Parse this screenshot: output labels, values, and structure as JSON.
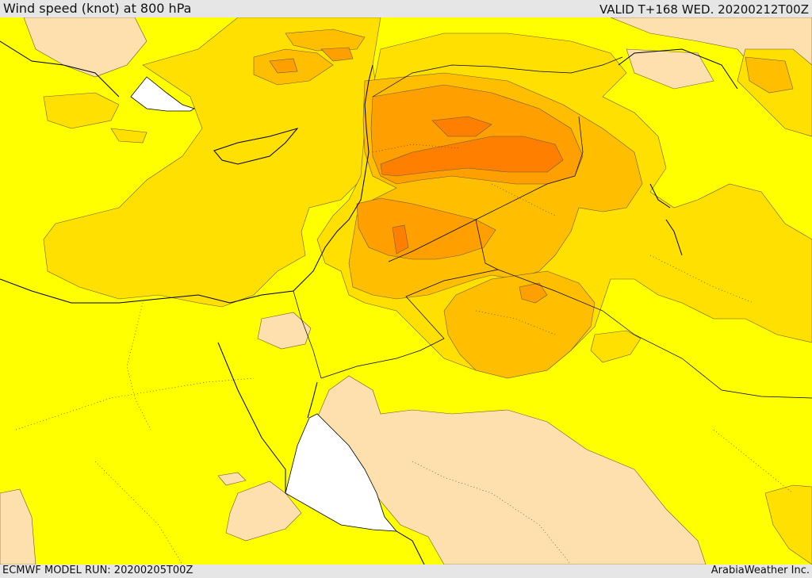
{
  "header": {
    "title": "Wind speed (knot) at 800 hPa",
    "valid": "VALID T+168 WED. 20200212T00Z"
  },
  "footer": {
    "model_run": "ECMWF MODEL RUN: 20200205T00Z",
    "credit": "ArabiaWeather Inc."
  },
  "colors": {
    "sea_white": "#ffffff",
    "low": "#fde0ae",
    "level1": "#ffff00",
    "level2": "#ffe000",
    "level3": "#ffbe00",
    "level4": "#ffa000",
    "level5": "#ff8000",
    "contour": "#6b5a3a",
    "coast": "#000000"
  }
}
